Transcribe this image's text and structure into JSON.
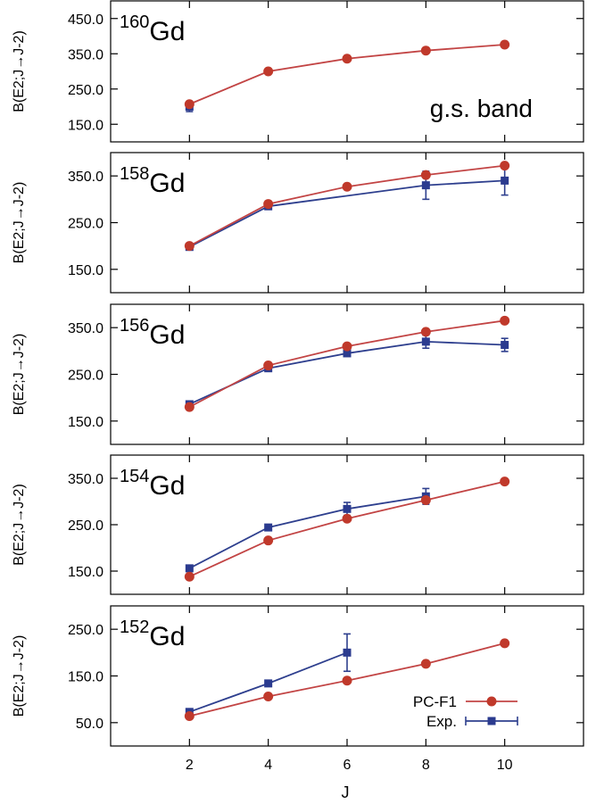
{
  "chart_data": [
    {
      "type": "line",
      "nucleus": {
        "mass": "160",
        "element": "Gd"
      },
      "annotation": "g.s. band",
      "ylabel": "B(E2;J→J-2)",
      "ylim": [
        100,
        500
      ],
      "yticks": [
        150.0,
        250.0,
        350.0,
        450.0
      ],
      "ytick_labels": [
        "150.0",
        "250.0",
        "350.0",
        "450.0"
      ],
      "series": [
        {
          "name": "PC-F1",
          "x": [
            2,
            4,
            6,
            8,
            10
          ],
          "y": [
            207,
            300,
            336,
            359,
            376
          ]
        },
        {
          "name": "Exp.",
          "x": [
            2
          ],
          "y": [
            200
          ],
          "err": [
            14
          ]
        }
      ]
    },
    {
      "type": "line",
      "nucleus": {
        "mass": "158",
        "element": "Gd"
      },
      "annotation": "",
      "ylabel": "B(E2;J→J-2)",
      "ylim": [
        100,
        400
      ],
      "yticks": [
        150.0,
        250.0,
        350.0
      ],
      "ytick_labels": [
        "150.0",
        "250.0",
        "350.0"
      ],
      "series": [
        {
          "name": "PC-F1",
          "x": [
            2,
            4,
            6,
            8,
            10
          ],
          "y": [
            200,
            290,
            327,
            352,
            372
          ]
        },
        {
          "name": "Exp.",
          "x": [
            2,
            4,
            8,
            10
          ],
          "y": [
            198,
            285,
            330,
            340
          ],
          "err": [
            4,
            5,
            30,
            31
          ]
        }
      ]
    },
    {
      "type": "line",
      "nucleus": {
        "mass": "156",
        "element": "Gd"
      },
      "annotation": "",
      "ylabel": "B(E2;J→J-2)",
      "ylim": [
        100,
        400
      ],
      "yticks": [
        150.0,
        250.0,
        350.0
      ],
      "ytick_labels": [
        "150.0",
        "250.0",
        "350.0"
      ],
      "series": [
        {
          "name": "PC-F1",
          "x": [
            2,
            4,
            6,
            8,
            10
          ],
          "y": [
            180,
            269,
            310,
            341,
            365
          ]
        },
        {
          "name": "Exp.",
          "x": [
            2,
            4,
            6,
            8,
            10
          ],
          "y": [
            186,
            263,
            295,
            320,
            313
          ],
          "err": [
            4,
            5,
            6,
            14,
            14
          ]
        }
      ]
    },
    {
      "type": "line",
      "nucleus": {
        "mass": "154",
        "element": "Gd"
      },
      "annotation": "",
      "ylabel": "B(E2;J→J-2)",
      "ylim": [
        100,
        400
      ],
      "yticks": [
        150.0,
        250.0,
        350.0
      ],
      "ytick_labels": [
        "150.0",
        "250.0",
        "350.0"
      ],
      "series": [
        {
          "name": "PC-F1",
          "x": [
            2,
            4,
            6,
            8,
            10
          ],
          "y": [
            138,
            216,
            263,
            303,
            343
          ]
        },
        {
          "name": "Exp.",
          "x": [
            2,
            4,
            6,
            8
          ],
          "y": [
            156,
            244,
            284,
            311
          ],
          "err": [
            4,
            6,
            14,
            17
          ]
        }
      ]
    },
    {
      "type": "line",
      "nucleus": {
        "mass": "152",
        "element": "Gd"
      },
      "annotation": "",
      "ylabel": "B(E2;J→J-2)",
      "ylim": [
        0,
        300
      ],
      "yticks": [
        50.0,
        150.0,
        250.0
      ],
      "ytick_labels": [
        "50.0",
        "150.0",
        "250.0"
      ],
      "series": [
        {
          "name": "PC-F1",
          "x": [
            2,
            4,
            6,
            8,
            10
          ],
          "y": [
            64,
            106,
            140,
            176,
            220
          ]
        },
        {
          "name": "Exp.",
          "x": [
            2,
            4,
            6
          ],
          "y": [
            73,
            134,
            200
          ],
          "err": [
            3,
            5,
            40
          ]
        }
      ],
      "legend": {
        "placement": "bottom-right",
        "entries": [
          "PC-F1",
          "Exp."
        ]
      }
    }
  ],
  "xaxis": {
    "label": "J",
    "xlim": [
      0,
      12
    ],
    "ticks": [
      2,
      4,
      6,
      8,
      10
    ],
    "tick_labels": [
      "2",
      "4",
      "6",
      "8",
      "10"
    ]
  },
  "colors": {
    "pc_f1": "#c0392b",
    "exp": "#2b3b8f",
    "pc_f1_line": "#c24444",
    "exp_line": "#2e3f8e"
  }
}
